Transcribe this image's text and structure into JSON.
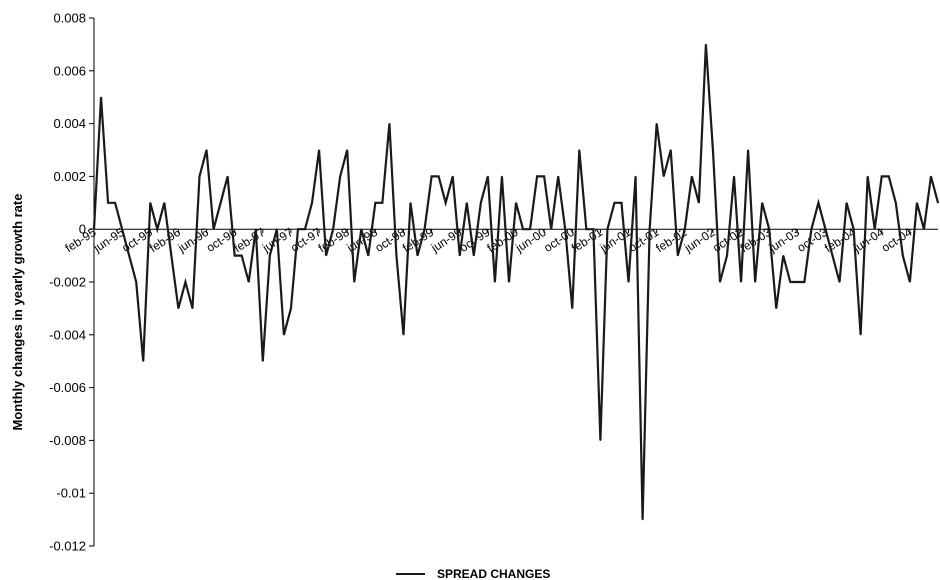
{
  "chart_data": {
    "type": "line",
    "title": "",
    "xlabel": "",
    "ylabel": "Monthly changes in yearly growth rate",
    "ylim": [
      -0.012,
      0.008
    ],
    "y_ticks": [
      "0.008",
      "0.006",
      "0.004",
      "0.002",
      "0",
      "-0.002",
      "-0.004",
      "-0.006",
      "-0.008",
      "-0.01",
      "-0.012"
    ],
    "x_ticks": [
      "feb-95",
      "jun-95",
      "oct-95",
      "feb-96",
      "jun-96",
      "oct-96",
      "feb-97",
      "jun-97",
      "oct-97",
      "feb-98",
      "jun-98",
      "oct-98",
      "feb-99",
      "jun-99",
      "oct-99",
      "feb-00",
      "jun-00",
      "oct-00",
      "feb-01",
      "jun-01",
      "oct-01",
      "feb-02",
      "jun-02",
      "oct-02",
      "feb-03",
      "jun-03",
      "oct-03",
      "feb-04",
      "jun-04",
      "oct-04"
    ],
    "x_start": "feb-95",
    "x_end": "dec-04",
    "grid": false,
    "legend_position": "bottom-center",
    "series": [
      {
        "name": "SPREAD CHANGES",
        "color": "#1a1a1a",
        "values": [
          0,
          0.005,
          0.001,
          0.001,
          0,
          -0.001,
          -0.002,
          -0.005,
          0.001,
          0,
          0.001,
          -0.001,
          -0.003,
          -0.002,
          -0.003,
          0.002,
          0.003,
          0,
          0.001,
          0.002,
          -0.001,
          -0.001,
          -0.002,
          0,
          -0.005,
          -0.001,
          0,
          -0.004,
          -0.003,
          0,
          0,
          0.001,
          0.003,
          -0.001,
          0,
          0.002,
          0.003,
          -0.002,
          0,
          -0.001,
          0.001,
          0.001,
          0.004,
          -0.001,
          -0.004,
          0.001,
          -0.001,
          0,
          0.002,
          0.002,
          0.001,
          0.002,
          -0.001,
          0.001,
          -0.001,
          0.001,
          0.002,
          -0.002,
          0.002,
          -0.002,
          0.001,
          0,
          0,
          0.002,
          0.002,
          0,
          0.002,
          0,
          -0.003,
          0.003,
          0,
          0,
          -0.008,
          0,
          0.001,
          0.001,
          -0.002,
          0.002,
          -0.011,
          0,
          0.004,
          0.002,
          0.003,
          -0.001,
          0,
          0.002,
          0.001,
          0.007,
          0.003,
          -0.002,
          -0.001,
          0.002,
          -0.002,
          0.003,
          -0.002,
          0.001,
          0,
          -0.003,
          -0.001,
          -0.002,
          -0.002,
          -0.002,
          0,
          0.001,
          0,
          -0.001,
          -0.002,
          0.001,
          0,
          -0.004,
          0.002,
          0,
          0.002,
          0.002,
          0.001,
          -0.001,
          -0.002,
          0.001,
          0,
          0.002,
          0.001
        ]
      }
    ]
  }
}
